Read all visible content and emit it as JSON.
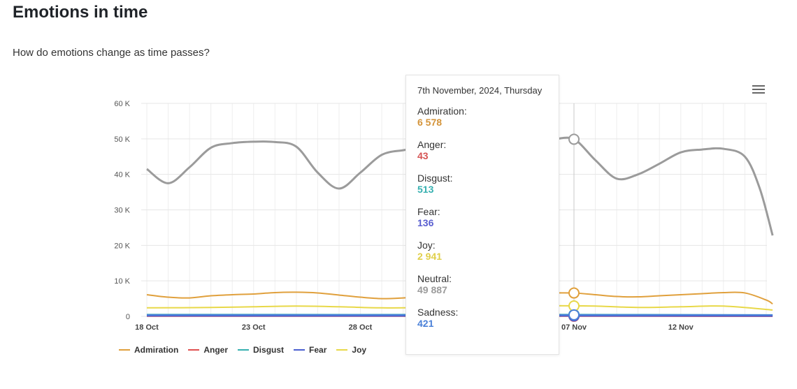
{
  "page": {
    "title": "Emotions in time",
    "subtitle": "How do emotions change as time passes?"
  },
  "chart_data": {
    "type": "line",
    "x_tick_labels": [
      "18 Oct",
      "23 Oct",
      "28 Oct",
      "07 Nov",
      "12 Nov"
    ],
    "x_tick_days": [
      0,
      5,
      10,
      20,
      25
    ],
    "y_tick_labels": [
      "0",
      "10 K",
      "20 K",
      "30 K",
      "40 K",
      "50 K",
      "60 K"
    ],
    "ylim": [
      0,
      60000
    ],
    "xlim_days": [
      0,
      29.3
    ],
    "x_start": "18 Oct 2024",
    "highlight_day": 20,
    "grid": true,
    "series": [
      {
        "name": "Admiration",
        "color": "#e0a03c",
        "points": [
          [
            0,
            6100
          ],
          [
            1,
            5400
          ],
          [
            2,
            5200
          ],
          [
            3,
            5800
          ],
          [
            4,
            6100
          ],
          [
            5,
            6300
          ],
          [
            6,
            6700
          ],
          [
            7,
            6800
          ],
          [
            8,
            6600
          ],
          [
            9,
            6000
          ],
          [
            10,
            5400
          ],
          [
            11,
            5000
          ],
          [
            12,
            5200
          ],
          [
            13,
            5600
          ],
          [
            14,
            6000
          ],
          [
            15,
            6300
          ],
          [
            16,
            6500
          ],
          [
            17,
            6600
          ],
          [
            18,
            6600
          ],
          [
            19,
            6600
          ],
          [
            20,
            6578
          ],
          [
            21,
            6100
          ],
          [
            22,
            5600
          ],
          [
            23,
            5500
          ],
          [
            24,
            5800
          ],
          [
            25,
            6100
          ],
          [
            26,
            6400
          ],
          [
            27,
            6700
          ],
          [
            28,
            6600
          ],
          [
            29,
            4600
          ],
          [
            29.3,
            3500
          ]
        ]
      },
      {
        "name": "Anger",
        "color": "#e05050",
        "points": [
          [
            0,
            60
          ],
          [
            10,
            50
          ],
          [
            20,
            43
          ],
          [
            29.3,
            30
          ]
        ]
      },
      {
        "name": "Disgust",
        "color": "#36b0b0",
        "points": [
          [
            0,
            520
          ],
          [
            10,
            500
          ],
          [
            20,
            513
          ],
          [
            29.3,
            420
          ]
        ]
      },
      {
        "name": "Fear",
        "color": "#4a5fd0",
        "points": [
          [
            0,
            140
          ],
          [
            10,
            130
          ],
          [
            20,
            136
          ],
          [
            29.3,
            110
          ]
        ]
      },
      {
        "name": "Joy",
        "color": "#e8d848",
        "points": [
          [
            0,
            2400
          ],
          [
            3,
            2500
          ],
          [
            5,
            2700
          ],
          [
            7,
            2900
          ],
          [
            9,
            2700
          ],
          [
            11,
            2400
          ],
          [
            13,
            2500
          ],
          [
            15,
            2700
          ],
          [
            17,
            2900
          ],
          [
            19,
            3000
          ],
          [
            20,
            2941
          ],
          [
            21,
            2900
          ],
          [
            23,
            2500
          ],
          [
            25,
            2700
          ],
          [
            27,
            2900
          ],
          [
            29.3,
            1800
          ]
        ]
      },
      {
        "name": "Neutral",
        "color": "#9b9b9b",
        "points": [
          [
            0,
            41500
          ],
          [
            1,
            37500
          ],
          [
            2,
            42000
          ],
          [
            3,
            47500
          ],
          [
            4,
            48800
          ],
          [
            5,
            49200
          ],
          [
            6,
            49100
          ],
          [
            7,
            47800
          ],
          [
            8,
            40500
          ],
          [
            9,
            36000
          ],
          [
            10,
            40500
          ],
          [
            11,
            45500
          ],
          [
            12,
            46800
          ],
          [
            13,
            47500
          ],
          [
            14,
            48200
          ],
          [
            15,
            48800
          ],
          [
            16,
            49300
          ],
          [
            17,
            49700
          ],
          [
            18,
            49900
          ],
          [
            19,
            49900
          ],
          [
            20,
            49887
          ],
          [
            21,
            44000
          ],
          [
            22,
            38800
          ],
          [
            23,
            40000
          ],
          [
            24,
            43000
          ],
          [
            25,
            46200
          ],
          [
            26,
            47000
          ],
          [
            27,
            47200
          ],
          [
            28,
            45000
          ],
          [
            28.7,
            36000
          ],
          [
            29.3,
            22800
          ]
        ]
      },
      {
        "name": "Sadness",
        "color": "#4a80d8",
        "points": [
          [
            0,
            420
          ],
          [
            10,
            430
          ],
          [
            20,
            421
          ],
          [
            29.3,
            400
          ]
        ]
      }
    ],
    "tooltip": {
      "date": "7th November, 2024, Thursday",
      "items": [
        {
          "label": "Admiration:",
          "value": "6 578",
          "color": "#d4943a"
        },
        {
          "label": "Anger:",
          "value": "43",
          "color": "#d65454"
        },
        {
          "label": "Disgust:",
          "value": "513",
          "color": "#36b0b0"
        },
        {
          "label": "Fear:",
          "value": "136",
          "color": "#5a5fd0"
        },
        {
          "label": "Joy:",
          "value": "2 941",
          "color": "#e0cf4a"
        },
        {
          "label": "Neutral:",
          "value": "49 887",
          "color": "#9b9b9b"
        },
        {
          "label": "Sadness:",
          "value": "421",
          "color": "#4a80d8"
        }
      ]
    },
    "legend": [
      {
        "name": "Admiration",
        "color": "#e0a03c"
      },
      {
        "name": "Anger",
        "color": "#e05050"
      },
      {
        "name": "Disgust",
        "color": "#36b0b0"
      },
      {
        "name": "Fear",
        "color": "#4a5fd0"
      },
      {
        "name": "Joy",
        "color": "#e8d848"
      }
    ]
  }
}
